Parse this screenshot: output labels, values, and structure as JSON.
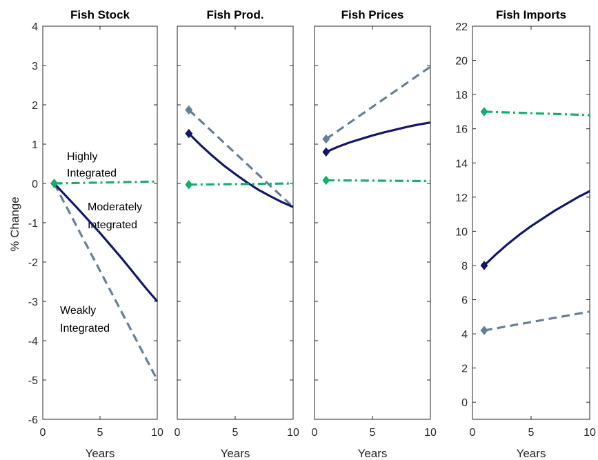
{
  "chart_data": [
    {
      "type": "line",
      "title": "Fish Stock",
      "xlabel": "Years",
      "ylabel": "% Change",
      "xlim": [
        0,
        10
      ],
      "ylim": [
        -6,
        4
      ],
      "xticks": [
        0,
        5,
        10
      ],
      "yticks": [
        -6,
        -5,
        -4,
        -3,
        -2,
        -1,
        0,
        1,
        2,
        3,
        4
      ],
      "series": [
        {
          "key": "weak",
          "color": "#657f98",
          "style": "dashed",
          "x": [
            1,
            10
          ],
          "y": [
            0.0,
            -5.0
          ]
        },
        {
          "key": "moderate",
          "color": "#14166e",
          "style": "solid",
          "x": [
            1,
            2,
            3,
            4,
            5,
            6,
            7,
            8,
            9,
            10
          ],
          "y": [
            0.0,
            -0.31,
            -0.62,
            -0.94,
            -1.26,
            -1.6,
            -1.94,
            -2.3,
            -2.66,
            -3.0
          ]
        },
        {
          "key": "high",
          "color": "#14b06b",
          "style": "dashdot",
          "x": [
            1,
            10
          ],
          "y": [
            0.0,
            0.05
          ]
        }
      ],
      "annotations": [
        {
          "lines": [
            "Highly",
            "Integrated"
          ]
        },
        {
          "lines": [
            "Moderately",
            "Integrated"
          ]
        },
        {
          "lines": [
            "Weakly",
            "Integrated"
          ]
        }
      ]
    },
    {
      "type": "line",
      "title": "Fish Prod.",
      "xlabel": "Years",
      "xlim": [
        0,
        10
      ],
      "ylim": [
        -6,
        4
      ],
      "xticks": [
        0,
        5,
        10
      ],
      "series": [
        {
          "key": "weak",
          "color": "#657f98",
          "style": "dashed",
          "x": [
            1,
            10
          ],
          "y": [
            1.87,
            -0.6
          ]
        },
        {
          "key": "moderate",
          "color": "#14166e",
          "style": "solid",
          "x": [
            1,
            2,
            3,
            4,
            5,
            6,
            7,
            8,
            9,
            10
          ],
          "y": [
            1.27,
            0.98,
            0.71,
            0.46,
            0.24,
            0.03,
            -0.16,
            -0.32,
            -0.47,
            -0.6
          ]
        },
        {
          "key": "high",
          "color": "#14b06b",
          "style": "dashdot",
          "x": [
            1,
            10
          ],
          "y": [
            -0.03,
            0.0
          ]
        }
      ]
    },
    {
      "type": "line",
      "title": "Fish Prices",
      "xlabel": "Years",
      "xlim": [
        0,
        10
      ],
      "ylim": [
        -6,
        4
      ],
      "xticks": [
        0,
        5,
        10
      ],
      "series": [
        {
          "key": "weak",
          "color": "#657f98",
          "style": "dashed",
          "x": [
            1,
            10
          ],
          "y": [
            1.13,
            2.97
          ]
        },
        {
          "key": "moderate",
          "color": "#14166e",
          "style": "solid",
          "x": [
            1,
            2,
            3,
            4,
            5,
            6,
            7,
            8,
            9,
            10
          ],
          "y": [
            0.8,
            0.93,
            1.04,
            1.13,
            1.22,
            1.3,
            1.37,
            1.44,
            1.5,
            1.55
          ]
        },
        {
          "key": "high",
          "color": "#14b06b",
          "style": "dashdot",
          "x": [
            1,
            10
          ],
          "y": [
            0.08,
            0.06
          ]
        }
      ]
    },
    {
      "type": "line",
      "title": "Fish Imports",
      "xlabel": "Years",
      "xlim": [
        0,
        10
      ],
      "ylim": [
        -1,
        22
      ],
      "xticks": [
        0,
        5,
        10
      ],
      "yticks": [
        0,
        2,
        4,
        6,
        8,
        10,
        12,
        14,
        16,
        18,
        20,
        22
      ],
      "series": [
        {
          "key": "weak",
          "color": "#657f98",
          "style": "dashed",
          "x": [
            1,
            10
          ],
          "y": [
            4.2,
            5.3
          ]
        },
        {
          "key": "moderate",
          "color": "#14166e",
          "style": "solid",
          "x": [
            1,
            2,
            3,
            4,
            5,
            6,
            7,
            8,
            9,
            10
          ],
          "y": [
            8.0,
            8.65,
            9.25,
            9.8,
            10.3,
            10.75,
            11.2,
            11.6,
            12.0,
            12.35
          ]
        },
        {
          "key": "high",
          "color": "#14b06b",
          "style": "dashdot",
          "x": [
            1,
            10
          ],
          "y": [
            17.0,
            16.8
          ]
        }
      ]
    }
  ]
}
